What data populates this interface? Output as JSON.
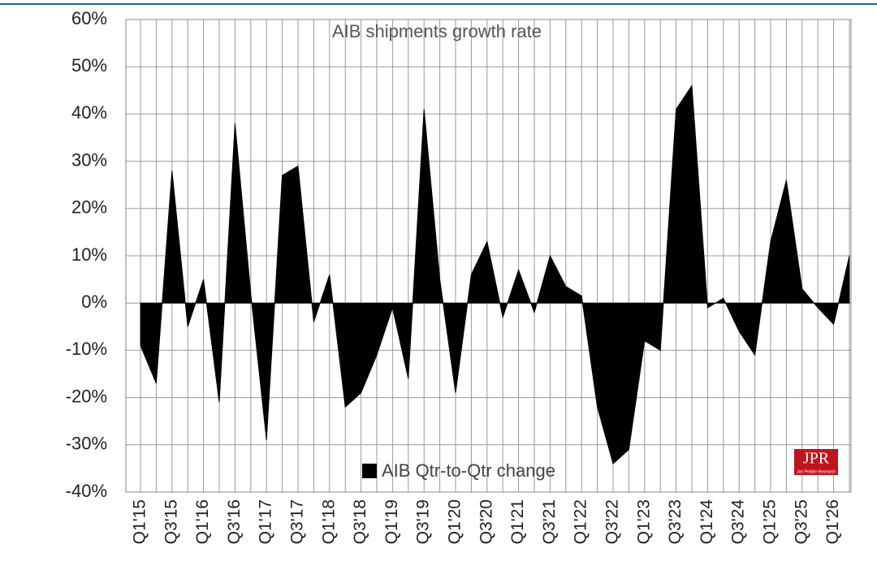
{
  "chart_data": {
    "type": "area",
    "title": "AIB shipments growth rate",
    "legend_label": "AIB Qtr-to-Qtr change",
    "color": "#000000",
    "categories": [
      "Q1'15",
      null,
      "Q3'15",
      null,
      "Q1'16",
      null,
      "Q3'16",
      null,
      "Q1'17",
      null,
      "Q3'17",
      null,
      "Q1'18",
      null,
      "Q3'18",
      null,
      "Q1'19",
      null,
      "Q3'19",
      null,
      "Q1'20",
      null,
      "Q3'20",
      null,
      "Q1'21",
      null,
      "Q3'21",
      null,
      "Q1'22",
      null,
      "Q3'22",
      null,
      "Q1'23",
      null,
      "Q3'23",
      null,
      "Q1'24",
      null,
      "Q3'24",
      null,
      "Q1'25",
      null,
      "Q3'25",
      null,
      "Q1'26",
      null
    ],
    "values": [
      -9,
      -17,
      28,
      -5,
      5,
      -21,
      38,
      2,
      -29,
      27,
      29,
      -4,
      6,
      -22,
      -19,
      -11,
      -1,
      -16,
      41,
      5,
      -19,
      6,
      13,
      -3,
      7,
      -2,
      10,
      3.5,
      1.5,
      -22,
      -34,
      -31,
      -8,
      -10,
      41,
      46,
      -1,
      1,
      -6,
      -11,
      13,
      26,
      3,
      -1,
      -4.5,
      10
    ],
    "ylim": [
      -40,
      60
    ],
    "yticks": [
      {
        "value": -40,
        "label": "-40%"
      },
      {
        "value": -30,
        "label": "-30%"
      },
      {
        "value": -20,
        "label": "-20%"
      },
      {
        "value": -10,
        "label": "-10%"
      },
      {
        "value": 0,
        "label": "0%"
      },
      {
        "value": 10,
        "label": "10%"
      },
      {
        "value": 20,
        "label": "20%"
      },
      {
        "value": 30,
        "label": "30%"
      },
      {
        "value": 40,
        "label": "40%"
      },
      {
        "value": 50,
        "label": "50%"
      },
      {
        "value": 60,
        "label": "60%"
      }
    ],
    "grid": true,
    "logo": {
      "text": "JPR",
      "subtext": "Jon Peddie Research"
    }
  }
}
